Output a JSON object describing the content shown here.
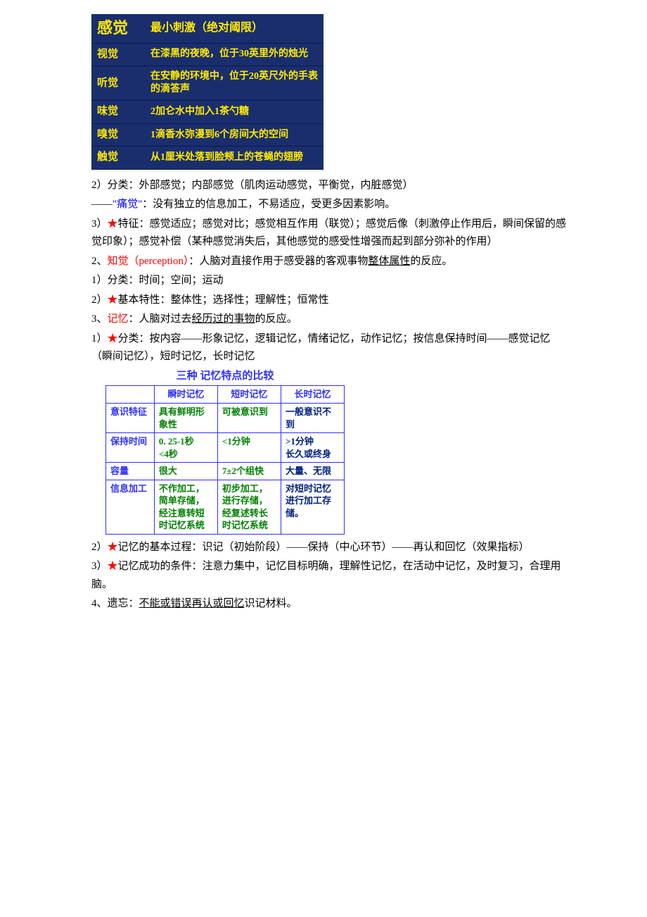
{
  "table1": {
    "header_left": "感觉",
    "header_right_main": "最小刺激",
    "header_right_sub": "（绝对阈限）",
    "rows": [
      {
        "label": "视觉",
        "desc": "在漆黑的夜晚，位于30英里外的烛光"
      },
      {
        "label": "听觉",
        "desc": "在安静的环境中，位于20英尺外的手表的滴答声"
      },
      {
        "label": "味觉",
        "desc": "2加仑水中加入1茶勺糖"
      },
      {
        "label": "嗅觉",
        "desc": "1滴香水弥漫到6个房间大的空间"
      },
      {
        "label": "触觉",
        "desc": "从1厘米处落到脸颊上的苍蝇的翅膀"
      }
    ]
  },
  "body": {
    "p1a": "2）分类：外部感觉；内部感觉（肌肉运动感觉，平衡觉，内脏感觉）",
    "p1b_pre": "——",
    "p1b_q": "\"痛觉\"",
    "p1b_post": "：没有独立的信息加工，不易适应，受更多因素影响。",
    "p2_pre": "3）",
    "p2_star": "★",
    "p2_post": "特征：感觉适应；感觉对比；感觉相互作用（联觉）；感觉后像（刺激停止作用后，瞬间保留的感觉印象）；感觉补偿（某种感觉消失后，其他感觉的感受性增强而起到部分弥补的作用）",
    "p3_pre": "2、",
    "p3_red": "知觉（perception）",
    "p3_mid": "：人脑对直接作用于感受器的客观事物",
    "p3_ul": "整体属性",
    "p3_post": "的反应。",
    "p4": "1）分类：时间；空间；运动",
    "p5_pre": "2）",
    "p5_star": "★",
    "p5_post": "基本特性：整体性；选择性；理解性；恒常性",
    "p6_pre": "3、",
    "p6_red": "记忆",
    "p6_mid": "：人脑对过去",
    "p6_ul": "经历过的事物",
    "p6_post": "的反应。",
    "p7_pre": "1）",
    "p7_star": "★",
    "p7_post": "分类：按内容——形象记忆，逻辑记忆，情绪记忆，动作记忆；按信息保持时间——感觉记忆（瞬间记忆），短时记忆，长时记忆"
  },
  "table2": {
    "title": "三种 记忆特点的比较",
    "header": [
      "",
      "瞬时记忆",
      "短时记忆",
      "长时记忆"
    ],
    "rows": [
      {
        "h": "意识特征",
        "c1": "具有鲜明形象性",
        "c2": "可被意识到",
        "c3": "一般意识不到"
      },
      {
        "h": "保持时间",
        "c1": "0. 25-1秒\n<4秒",
        "c2": "<1分钟",
        "c3": ">1分钟\n长久或终身"
      },
      {
        "h": "容量",
        "c1": "很大",
        "c2": "7±2个组快",
        "c3": "大量、无限"
      },
      {
        "h": "信息加工",
        "c1": "不作加工，简单存储，经注意转短时记忆系统",
        "c2": "初步加工，进行存储，经复述转长时记忆系统",
        "c3": "对短时记忆进行加工存储。"
      }
    ]
  },
  "body2": {
    "p8_pre": "2）",
    "p8_star": "★",
    "p8_post": "记忆的基本过程：识记（初始阶段）——保持（中心环节）——再认和回忆（效果指标）",
    "p9_pre": "3）",
    "p9_star": "★",
    "p9_post": "记忆成功的条件：注意力集中，记忆目标明确，理解性记忆，在活动中记忆，及时复习，合理用脑。",
    "p10_pre": "4、遗忘：",
    "p10_ul": "不能或错误再认或回忆",
    "p10_post": "识记材料。"
  }
}
